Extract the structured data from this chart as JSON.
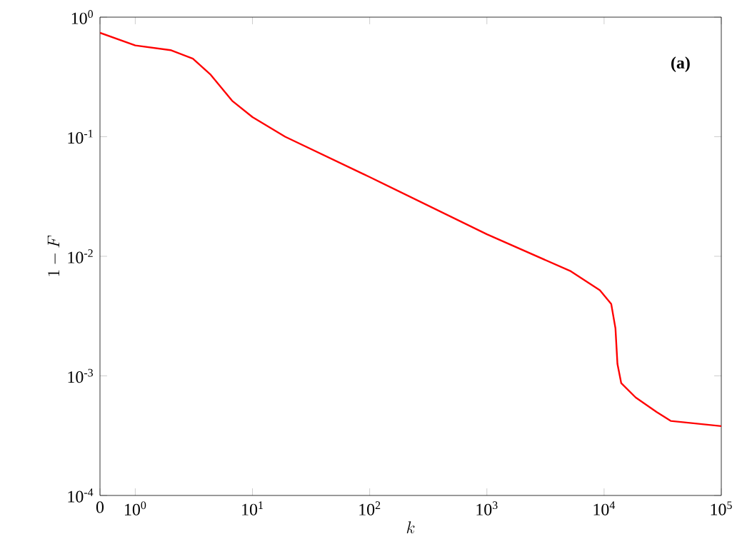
{
  "chart_data": {
    "type": "line",
    "xlabel": "k",
    "ylabel": "1-F",
    "log": "xy",
    "annotations": [
      "(a)"
    ],
    "xlim": [
      0.5,
      100000
    ],
    "ylim": [
      0.0001,
      1
    ],
    "xticks": [
      {
        "value": 0.5,
        "label": "0"
      },
      {
        "value": 1,
        "label": "10$^{0}$"
      },
      {
        "value": 10,
        "label": "10$^{1}$"
      },
      {
        "value": 100,
        "label": "10$^{2}$"
      },
      {
        "value": 1000,
        "label": "10$^{3}$"
      },
      {
        "value": 10000,
        "label": "10$^{4}$"
      },
      {
        "value": 100000,
        "label": "10$^{5}$"
      }
    ],
    "yticks": [
      {
        "value": 0.0001,
        "label": "10$^{-4}$"
      },
      {
        "value": 0.001,
        "label": "10$^{-3}$"
      },
      {
        "value": 0.01,
        "label": "10$^{-2}$"
      },
      {
        "value": 0.1,
        "label": "10$^{-1}$"
      },
      {
        "value": 1,
        "label": "10$^{0}$"
      }
    ],
    "x": [
      0.5,
      1,
      2,
      3.1,
      4.4,
      6.7,
      10,
      19,
      100,
      1000,
      5200,
      9200,
      11500,
      12500,
      13000,
      14000,
      18600,
      28000,
      37000,
      100000
    ],
    "series": [
      {
        "color": "#ff0000",
        "values": [
          0.74,
          0.58,
          0.53,
          0.45,
          0.33,
          0.2,
          0.146,
          0.1,
          0.046,
          0.0153,
          0.0075,
          0.0052,
          0.004,
          0.0025,
          0.00126,
          0.00087,
          0.00066,
          0.0005,
          0.00042,
          0.00038
        ]
      }
    ]
  }
}
